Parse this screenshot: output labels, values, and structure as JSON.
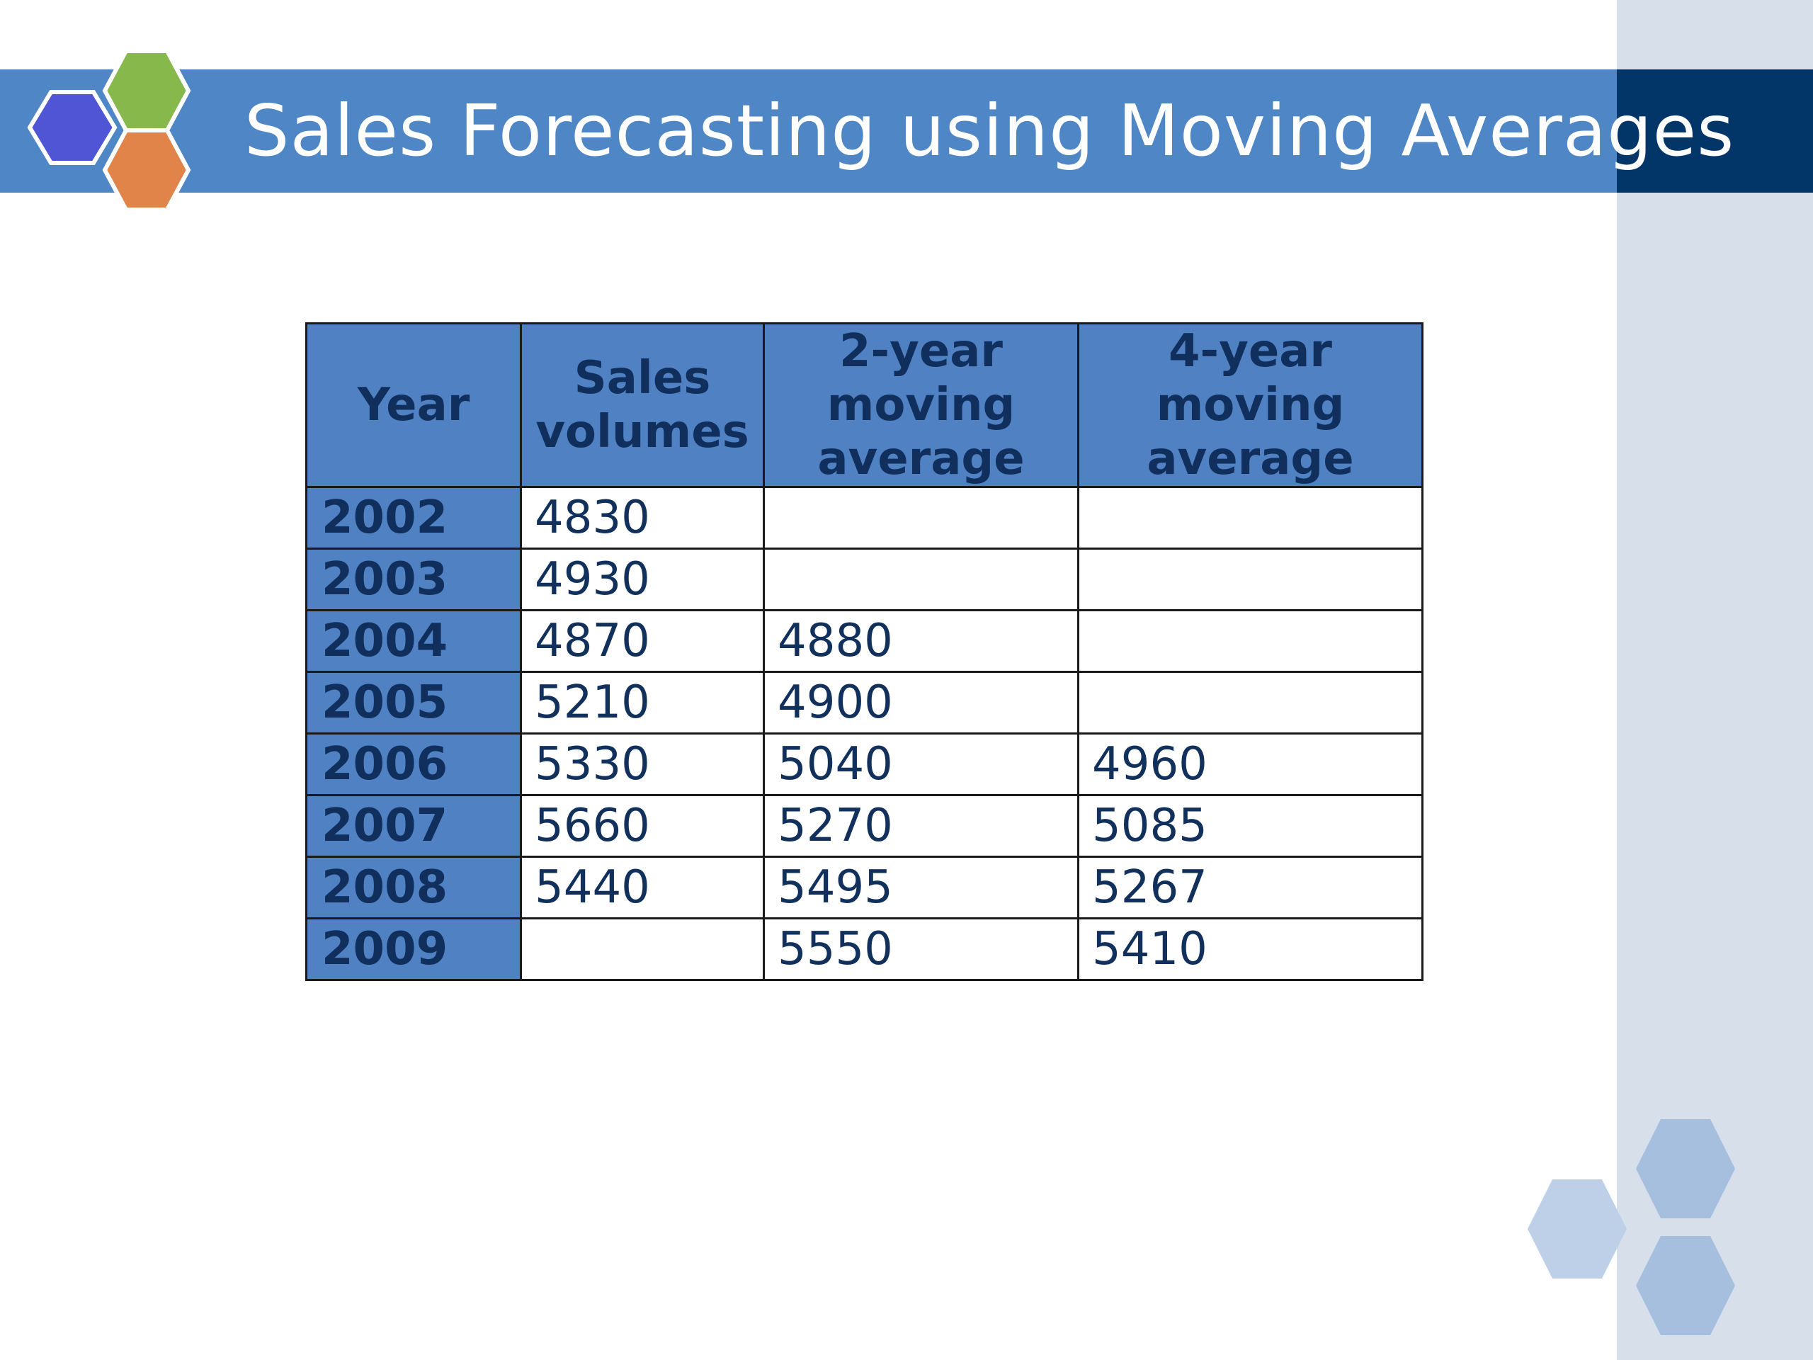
{
  "slide": {
    "title": "Sales Forecasting using Moving Averages",
    "colors": {
      "title_bar": "#4e86c6",
      "title_bar_dark": "#033668",
      "side_panel": "#d6dfea",
      "header_fill": "#4f81c3",
      "text_dark_blue": "#12305c",
      "logo_hex_purple": "#5055d6",
      "logo_hex_green": "#86b84c",
      "logo_hex_orange": "#e0844a"
    }
  },
  "table": {
    "columns": [
      "Year",
      "Sales volumes",
      "2-year moving average",
      "4-year moving average"
    ],
    "rows": [
      {
        "year": "2002",
        "sales": "4830",
        "ma2": "",
        "ma4": ""
      },
      {
        "year": "2003",
        "sales": "4930",
        "ma2": "",
        "ma4": ""
      },
      {
        "year": "2004",
        "sales": "4870",
        "ma2": "4880",
        "ma4": ""
      },
      {
        "year": "2005",
        "sales": "5210",
        "ma2": "4900",
        "ma4": ""
      },
      {
        "year": "2006",
        "sales": "5330",
        "ma2": "5040",
        "ma4": "4960"
      },
      {
        "year": "2007",
        "sales": "5660",
        "ma2": "5270",
        "ma4": "5085"
      },
      {
        "year": "2008",
        "sales": "5440",
        "ma2": "5495",
        "ma4": "5267"
      },
      {
        "year": "2009",
        "sales": "",
        "ma2": "5550",
        "ma4": "5410"
      }
    ]
  }
}
